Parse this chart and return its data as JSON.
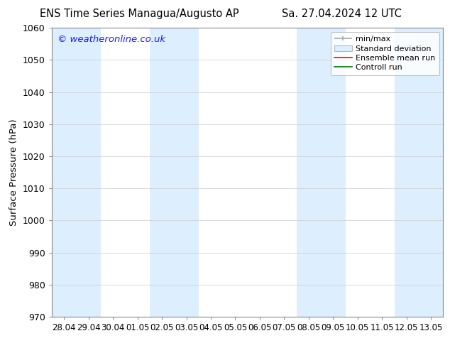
{
  "title_left": "ENS Time Series Managua/Augusto AP",
  "title_right": "Sa. 27.04.2024 12 UTC",
  "ylabel": "Surface Pressure (hPa)",
  "watermark": "© weatheronline.co.uk",
  "watermark_color": "#1a1aff",
  "ylim": [
    970,
    1060
  ],
  "yticks": [
    970,
    980,
    990,
    1000,
    1010,
    1020,
    1030,
    1040,
    1050,
    1060
  ],
  "xtick_labels": [
    "28.04",
    "29.04",
    "30.04",
    "01.05",
    "02.05",
    "03.05",
    "04.05",
    "05.05",
    "06.05",
    "07.05",
    "08.05",
    "09.05",
    "10.05",
    "11.05",
    "12.05",
    "13.05"
  ],
  "bg_color": "#ffffff",
  "plot_bg_color": "#ffffff",
  "shaded_band_color": "#ddeeff",
  "shaded_columns": [
    0,
    1,
    4,
    5,
    10,
    11,
    14,
    15
  ],
  "legend_entries": [
    "min/max",
    "Standard deviation",
    "Ensemble mean run",
    "Controll run"
  ],
  "legend_line_colors": [
    "#aaaaaa",
    "#c8daea",
    "#ff0000",
    "#007700"
  ],
  "grid_color": "#cccccc",
  "tick_color": "#000000",
  "font_color": "#000000",
  "title_fontsize": 10.5,
  "axis_fontsize": 9,
  "legend_fontsize": 8
}
